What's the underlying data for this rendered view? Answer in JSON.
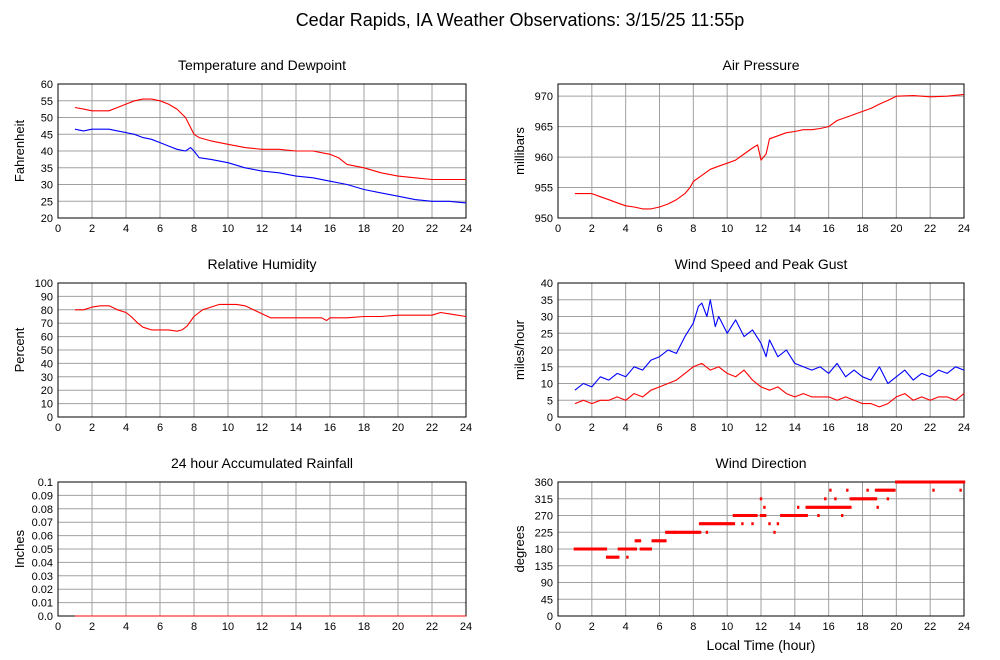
{
  "title": "Cedar Rapids, IA Weather Observations: 3/15/25 11:55p",
  "x_axis_label": "Local Time (hour)",
  "colors": {
    "red": "#ff0000",
    "blue": "#0000ff",
    "grid": "#a0a0a0"
  },
  "chart_data": [
    {
      "id": "temp",
      "type": "line",
      "title": "Temperature and Dewpoint",
      "ylabel": "Fahrenheit",
      "xlim": [
        0,
        24
      ],
      "ylim": [
        20,
        60
      ],
      "yticks": [
        20,
        25,
        30,
        35,
        40,
        45,
        50,
        55,
        60
      ],
      "xticks": [
        0,
        2,
        4,
        6,
        8,
        10,
        12,
        14,
        16,
        18,
        20,
        22,
        24
      ],
      "grid": true,
      "series": [
        {
          "color": "#ff0000",
          "x": [
            1,
            1.5,
            2,
            2.5,
            3,
            3.5,
            4,
            4.5,
            5,
            5.5,
            6,
            6.5,
            7,
            7.5,
            7.8,
            8,
            8.3,
            9,
            10,
            11,
            12,
            13,
            14,
            15,
            15.5,
            16,
            16.5,
            17,
            18,
            19,
            20,
            21,
            22,
            23,
            24
          ],
          "y": [
            53,
            52.5,
            52,
            52,
            52,
            53,
            54,
            55,
            55.5,
            55.5,
            55,
            54,
            52.5,
            50,
            47,
            45,
            44,
            43,
            42,
            41,
            40.5,
            40.5,
            40,
            40,
            39.5,
            39,
            38,
            36,
            35,
            33.5,
            32.5,
            32,
            31.5,
            31.5,
            31.5
          ]
        },
        {
          "color": "#0000ff",
          "x": [
            1,
            1.5,
            2,
            2.5,
            3,
            3.5,
            4,
            4.5,
            5,
            5.5,
            6,
            6.5,
            7,
            7.5,
            7.8,
            8,
            8.3,
            9,
            10,
            11,
            12,
            13,
            14,
            15,
            16,
            17,
            18,
            19,
            20,
            21,
            22,
            23,
            24
          ],
          "y": [
            46.5,
            46,
            46.5,
            46.5,
            46.5,
            46,
            45.5,
            45,
            44,
            43.5,
            42.5,
            41.5,
            40.5,
            40,
            41,
            40,
            38,
            37.5,
            36.5,
            35,
            34,
            33.5,
            32.5,
            32,
            31,
            30,
            28.5,
            27.5,
            26.5,
            25.5,
            25,
            25,
            24.5
          ]
        }
      ]
    },
    {
      "id": "pressure",
      "type": "line",
      "title": "Air Pressure",
      "ylabel": "millibars",
      "xlim": [
        0,
        24
      ],
      "ylim": [
        950,
        972
      ],
      "yticks": [
        950,
        955,
        960,
        965,
        970
      ],
      "xticks": [
        0,
        2,
        4,
        6,
        8,
        10,
        12,
        14,
        16,
        18,
        20,
        22,
        24
      ],
      "grid": true,
      "series": [
        {
          "color": "#ff0000",
          "x": [
            1,
            2,
            2.5,
            3,
            3.5,
            4,
            4.5,
            5,
            5.5,
            6,
            6.5,
            7,
            7.5,
            7.8,
            8,
            8.5,
            9,
            9.5,
            10,
            10.5,
            11,
            11.5,
            11.8,
            12,
            12.3,
            12.5,
            13,
            13.5,
            14,
            14.5,
            15,
            15.5,
            16,
            16.5,
            17,
            17.5,
            18,
            18.5,
            19,
            19.5,
            20,
            21,
            22,
            23,
            24
          ],
          "y": [
            954,
            954,
            953.5,
            953,
            952.5,
            952,
            951.8,
            951.5,
            951.5,
            951.8,
            952.3,
            953,
            954,
            955,
            956,
            957,
            958,
            958.5,
            959,
            959.5,
            960.5,
            961.5,
            962,
            959.5,
            960.5,
            963,
            963.5,
            964,
            964.2,
            964.5,
            964.5,
            964.7,
            965,
            966,
            966.5,
            967,
            967.5,
            968,
            968.7,
            969.3,
            970,
            970.1,
            969.9,
            970,
            970.3
          ]
        }
      ]
    },
    {
      "id": "humidity",
      "type": "line",
      "title": "Relative Humidity",
      "ylabel": "Percent",
      "xlim": [
        0,
        24
      ],
      "ylim": [
        0,
        100
      ],
      "yticks": [
        0,
        10,
        20,
        30,
        40,
        50,
        60,
        70,
        80,
        90,
        100
      ],
      "xticks": [
        0,
        2,
        4,
        6,
        8,
        10,
        12,
        14,
        16,
        18,
        20,
        22,
        24
      ],
      "grid": true,
      "series": [
        {
          "color": "#ff0000",
          "x": [
            1,
            1.5,
            2,
            2.5,
            3,
            3.5,
            4,
            4.3,
            4.7,
            5,
            5.5,
            6,
            6.5,
            7,
            7.3,
            7.6,
            8,
            8.5,
            9,
            9.5,
            10,
            10.5,
            11,
            11.5,
            12,
            12.5,
            13,
            14,
            15,
            15.5,
            15.8,
            16,
            17,
            18,
            19,
            20,
            21,
            22,
            22.5,
            23,
            24
          ],
          "y": [
            80,
            80,
            82,
            83,
            83,
            80,
            78,
            75,
            70,
            67,
            65,
            65,
            65,
            64,
            65,
            68,
            75,
            80,
            82,
            84,
            84,
            84,
            83,
            80,
            77,
            74,
            74,
            74,
            74,
            74,
            72,
            74,
            74,
            75,
            75,
            76,
            76,
            76,
            78,
            77,
            75
          ]
        }
      ]
    },
    {
      "id": "wind",
      "type": "line",
      "title": "Wind Speed and Peak Gust",
      "ylabel": "miles/hour",
      "xlim": [
        0,
        24
      ],
      "ylim": [
        0,
        40
      ],
      "yticks": [
        0,
        5,
        10,
        15,
        20,
        25,
        30,
        35,
        40
      ],
      "xticks": [
        0,
        2,
        4,
        6,
        8,
        10,
        12,
        14,
        16,
        18,
        20,
        22,
        24
      ],
      "grid": true,
      "series": [
        {
          "color": "#0000ff",
          "x": [
            1,
            1.5,
            2,
            2.5,
            3,
            3.5,
            4,
            4.5,
            5,
            5.5,
            6,
            6.5,
            7,
            7.5,
            8,
            8.3,
            8.5,
            8.8,
            9,
            9.3,
            9.5,
            10,
            10.5,
            11,
            11.5,
            12,
            12.3,
            12.5,
            13,
            13.5,
            14,
            14.5,
            15,
            15.5,
            16,
            16.5,
            17,
            17.5,
            18,
            18.5,
            19,
            19.5,
            20,
            20.5,
            21,
            21.5,
            22,
            22.5,
            23,
            23.5,
            24
          ],
          "y": [
            8,
            10,
            9,
            12,
            11,
            13,
            12,
            15,
            14,
            17,
            18,
            20,
            19,
            24,
            28,
            33,
            34,
            30,
            35,
            27,
            30,
            25,
            29,
            24,
            26,
            22,
            18,
            23,
            18,
            20,
            16,
            15,
            14,
            15,
            13,
            16,
            12,
            14,
            12,
            11,
            15,
            10,
            12,
            14,
            11,
            13,
            12,
            14,
            13,
            15,
            14
          ]
        },
        {
          "color": "#ff0000",
          "x": [
            1,
            1.5,
            2,
            2.5,
            3,
            3.5,
            4,
            4.5,
            5,
            5.5,
            6,
            6.5,
            7,
            7.5,
            8,
            8.5,
            9,
            9.5,
            10,
            10.5,
            11,
            11.5,
            12,
            12.5,
            13,
            13.5,
            14,
            14.5,
            15,
            15.5,
            16,
            16.5,
            17,
            17.5,
            18,
            18.5,
            19,
            19.5,
            20,
            20.5,
            21,
            21.5,
            22,
            22.5,
            23,
            23.5,
            24
          ],
          "y": [
            4,
            5,
            4,
            5,
            5,
            6,
            5,
            7,
            6,
            8,
            9,
            10,
            11,
            13,
            15,
            16,
            14,
            15,
            13,
            12,
            14,
            11,
            9,
            8,
            9,
            7,
            6,
            7,
            6,
            6,
            6,
            5,
            6,
            5,
            4,
            4,
            3,
            4,
            6,
            7,
            5,
            6,
            5,
            6,
            6,
            5,
            7
          ]
        }
      ]
    },
    {
      "id": "rain",
      "type": "line",
      "title": "24 hour Accumulated Rainfall",
      "ylabel": "Inches",
      "xlim": [
        0,
        24
      ],
      "ylim": [
        0,
        0.1
      ],
      "yticks": [
        0,
        0.01,
        0.02,
        0.03,
        0.04,
        0.05,
        0.06,
        0.07,
        0.08,
        0.09,
        0.1
      ],
      "ytick_labels": [
        "0.0",
        "0.01",
        "0.02",
        "0.03",
        "0.04",
        "0.05",
        "0.06",
        "0.07",
        "0.08",
        "0.09",
        "0.1"
      ],
      "xticks": [
        0,
        2,
        4,
        6,
        8,
        10,
        12,
        14,
        16,
        18,
        20,
        22,
        24
      ],
      "grid": true,
      "series": [
        {
          "color": "#ff0000",
          "x": [
            1,
            24
          ],
          "y": [
            0,
            0
          ]
        }
      ]
    },
    {
      "id": "direction",
      "type": "scatter",
      "title": "Wind Direction",
      "ylabel": "degrees",
      "xlim": [
        0,
        24
      ],
      "ylim": [
        0,
        360
      ],
      "yticks": [
        0,
        45,
        90,
        135,
        180,
        225,
        270,
        315,
        360
      ],
      "xticks": [
        0,
        2,
        4,
        6,
        8,
        10,
        12,
        14,
        16,
        18,
        20,
        22,
        24
      ],
      "grid": true,
      "segments": [
        {
          "x0": 1.0,
          "x1": 2.9,
          "y": 180
        },
        {
          "x0": 2.9,
          "x1": 3.6,
          "y": 158
        },
        {
          "x0": 3.6,
          "x1": 4.6,
          "y": 180
        },
        {
          "x0": 4.6,
          "x1": 4.9,
          "y": 202
        },
        {
          "x0": 4.9,
          "x1": 5.5,
          "y": 180
        },
        {
          "x0": 5.6,
          "x1": 6.4,
          "y": 202
        },
        {
          "x0": 6.4,
          "x1": 8.4,
          "y": 225
        },
        {
          "x0": 8.4,
          "x1": 10.4,
          "y": 248
        },
        {
          "x0": 10.4,
          "x1": 11.8,
          "y": 270
        },
        {
          "x0": 12.0,
          "x1": 12.3,
          "y": 270
        },
        {
          "x0": 13.2,
          "x1": 14.7,
          "y": 270
        },
        {
          "x0": 14.7,
          "x1": 17.3,
          "y": 292
        },
        {
          "x0": 17.3,
          "x1": 18.8,
          "y": 315
        },
        {
          "x0": 18.8,
          "x1": 19.9,
          "y": 338
        },
        {
          "x0": 20.0,
          "x1": 24.0,
          "y": 360
        }
      ],
      "points": [
        {
          "x": 12.0,
          "y": 315
        },
        {
          "x": 12.2,
          "y": 292
        },
        {
          "x": 12.5,
          "y": 248
        },
        {
          "x": 12.8,
          "y": 225
        },
        {
          "x": 13.0,
          "y": 248
        },
        {
          "x": 10.9,
          "y": 248
        },
        {
          "x": 11.5,
          "y": 248
        },
        {
          "x": 14.2,
          "y": 292
        },
        {
          "x": 15.4,
          "y": 270
        },
        {
          "x": 15.8,
          "y": 315
        },
        {
          "x": 16.1,
          "y": 338
        },
        {
          "x": 16.4,
          "y": 315
        },
        {
          "x": 16.8,
          "y": 270
        },
        {
          "x": 17.1,
          "y": 338
        },
        {
          "x": 18.3,
          "y": 338
        },
        {
          "x": 18.9,
          "y": 292
        },
        {
          "x": 19.5,
          "y": 315
        },
        {
          "x": 22.2,
          "y": 338
        },
        {
          "x": 23.8,
          "y": 338
        },
        {
          "x": 8.8,
          "y": 225
        },
        {
          "x": 4.1,
          "y": 158
        },
        {
          "x": 6.9,
          "y": 225
        }
      ]
    }
  ]
}
